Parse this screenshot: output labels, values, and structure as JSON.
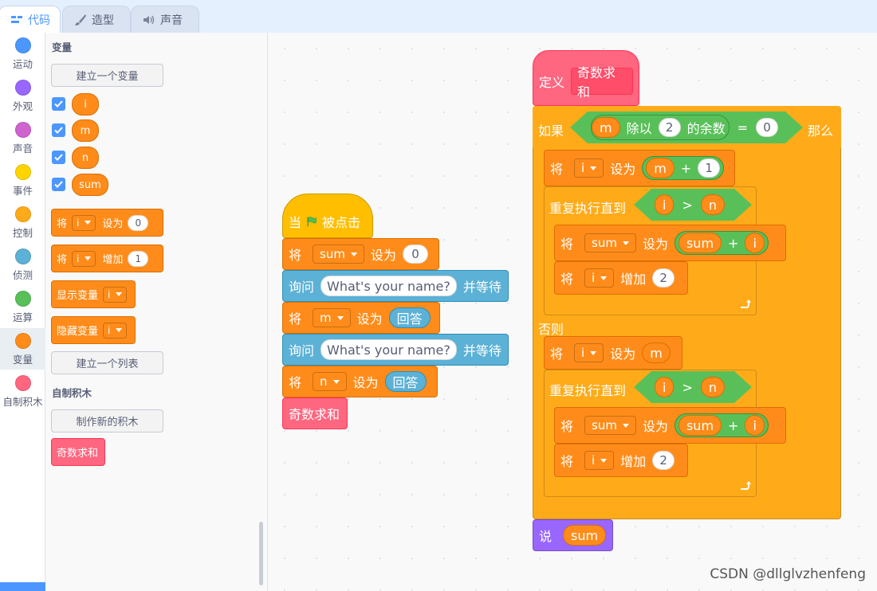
{
  "tabs": {
    "code": "代码",
    "costumes": "造型",
    "sounds": "声音"
  },
  "categories": [
    {
      "label": "运动",
      "color": "#4c97ff"
    },
    {
      "label": "外观",
      "color": "#9966ff"
    },
    {
      "label": "声音",
      "color": "#cf63cf"
    },
    {
      "label": "事件",
      "color": "#ffd500"
    },
    {
      "label": "控制",
      "color": "#ffab19"
    },
    {
      "label": "侦测",
      "color": "#5cb1d6"
    },
    {
      "label": "运算",
      "color": "#59c059"
    },
    {
      "label": "变量",
      "color": "#ff8c1a"
    },
    {
      "label": "自制积木",
      "color": "#ff6680"
    }
  ],
  "palette": {
    "variables_title": "变量",
    "make_variable": "建立一个变量",
    "vars": [
      "i",
      "m",
      "n",
      "sum"
    ],
    "set_label": "将",
    "set_word": "设为",
    "set_var": "i",
    "set_value": "0",
    "change_label": "将",
    "change_word": "增加",
    "change_var": "i",
    "change_value": "1",
    "show_var": "显示变量",
    "show_var_name": "i",
    "hide_var": "隐藏变量",
    "hide_var_name": "i",
    "make_list": "建立一个列表",
    "custom_title": "自制积木",
    "make_block": "制作新的积木",
    "custom_block": "奇数求和"
  },
  "script1": {
    "hat_when": "当",
    "hat_clicked": "被点击",
    "set": "将",
    "to": "设为",
    "sum_var": "sum",
    "zero": "0",
    "ask": "询问",
    "question": "What's your name?",
    "wait": "并等待",
    "m_var": "m",
    "answer": "回答",
    "n_var": "n",
    "call": "奇数求和"
  },
  "script2": {
    "define": "定义",
    "proc_name": "奇数求和",
    "if": "如果",
    "then": "那么",
    "else": "否则",
    "m": "m",
    "mod": "除以",
    "two": "2",
    "remainder": "的余数",
    "eq": "=",
    "zero": "0",
    "set": "将",
    "to": "设为",
    "change": "增加",
    "i": "i",
    "plus": "+",
    "one": "1",
    "repeat_until": "重复执行直到",
    "gt": ">",
    "n": "n",
    "sum": "sum",
    "say": "说",
    "say_var": "sum"
  },
  "watermark": "CSDN @dllglvzhenfeng"
}
